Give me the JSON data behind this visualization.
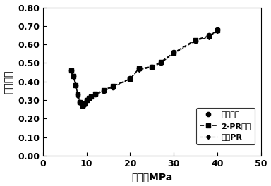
{
  "title": "",
  "xlabel": "压力，MPa",
  "ylabel": "偶极因子",
  "xlim": [
    0,
    50
  ],
  "ylim": [
    0.0,
    0.8
  ],
  "xticks": [
    0,
    10,
    20,
    30,
    40,
    50
  ],
  "yticks": [
    0.0,
    0.1,
    0.2,
    0.3,
    0.4,
    0.5,
    0.6,
    0.7,
    0.8
  ],
  "exp_x": [
    6.5,
    7.0,
    7.5,
    8.0,
    8.5,
    9.0,
    9.5,
    10.0,
    10.5,
    11.0,
    12.0,
    14.0,
    16.0,
    20.0,
    22.0,
    25.0,
    27.0,
    30.0,
    35.0,
    38.0,
    40.0
  ],
  "exp_y": [
    0.46,
    0.43,
    0.38,
    0.33,
    0.29,
    0.27,
    0.28,
    0.3,
    0.31,
    0.32,
    0.33,
    0.35,
    0.37,
    0.42,
    0.47,
    0.48,
    0.5,
    0.56,
    0.62,
    0.65,
    0.68
  ],
  "pr2_x": [
    6.5,
    7.0,
    7.5,
    8.0,
    8.5,
    9.0,
    9.5,
    10.0,
    10.5,
    11.0,
    12.0,
    14.0,
    16.0,
    20.0,
    22.0,
    25.0,
    27.0,
    30.0,
    35.0,
    38.0,
    40.0
  ],
  "pr2_y": [
    0.46,
    0.43,
    0.38,
    0.33,
    0.29,
    0.27,
    0.28,
    0.3,
    0.31,
    0.32,
    0.335,
    0.355,
    0.375,
    0.415,
    0.47,
    0.48,
    0.505,
    0.555,
    0.625,
    0.645,
    0.675
  ],
  "corrpr_x": [
    6.5,
    7.0,
    7.5,
    8.0,
    8.5,
    9.0,
    9.5,
    10.0,
    10.5,
    11.0,
    12.0,
    14.0,
    16.0,
    20.0,
    22.0,
    25.0,
    27.0,
    30.0,
    35.0,
    38.0,
    40.0
  ],
  "corrpr_y": [
    0.455,
    0.425,
    0.375,
    0.325,
    0.285,
    0.265,
    0.275,
    0.295,
    0.305,
    0.315,
    0.33,
    0.35,
    0.37,
    0.415,
    0.465,
    0.475,
    0.5,
    0.55,
    0.62,
    0.64,
    0.672
  ],
  "legend_exp": "实验数据",
  "legend_pr2": "2-PR方程",
  "legend_corrpr": "校正PR",
  "line_color": "#000000",
  "marker_color": "#000000",
  "bg_color": "#ffffff",
  "tick_fontsize": 9,
  "label_fontsize": 10,
  "legend_fontsize": 8
}
